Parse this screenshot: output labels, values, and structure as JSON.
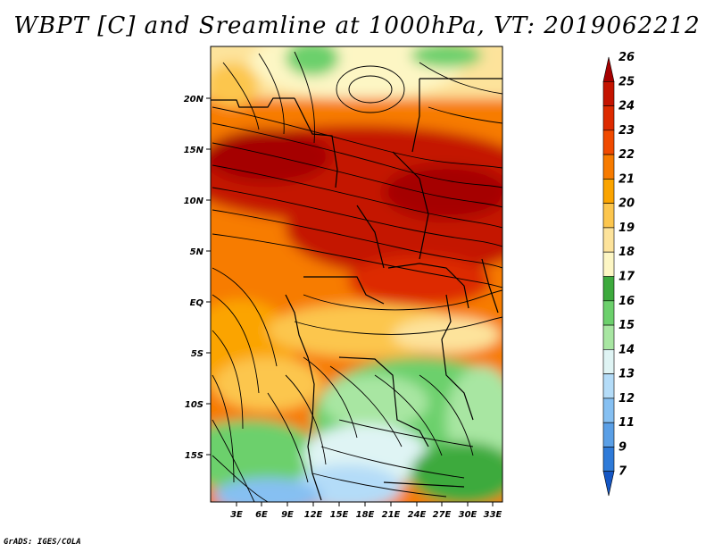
{
  "title": "WBPT [C] and Sreamline at 1000hPa, VT: 2019062212",
  "footer": "GrADS: IGES/COLA",
  "map": {
    "lat_labels": [
      "20N",
      "15N",
      "10N",
      "5N",
      "EQ",
      "5S",
      "10S",
      "15S"
    ],
    "lon_labels": [
      "3E",
      "6E",
      "9E",
      "12E",
      "15E",
      "18E",
      "21E",
      "24E",
      "27E",
      "30E",
      "33E"
    ],
    "lat_range": [
      -19,
      24
    ],
    "lon_range": [
      0,
      34
    ]
  },
  "colorbar": {
    "labels": [
      "26",
      "25",
      "24",
      "23",
      "22",
      "21",
      "20",
      "19",
      "18",
      "17",
      "16",
      "15",
      "14",
      "13",
      "12",
      "11",
      "9",
      "7"
    ],
    "colors": [
      "#a50000",
      "#c41300",
      "#dd2a00",
      "#f04a00",
      "#f77b00",
      "#fba400",
      "#fcc64e",
      "#fde39b",
      "#fdf6c4",
      "#3daa3d",
      "#6cd06c",
      "#a8e6a2",
      "#dff4f4",
      "#b4dcf8",
      "#86c0f2",
      "#5a9fe6",
      "#2e7ad8",
      "#1456c4"
    ]
  }
}
